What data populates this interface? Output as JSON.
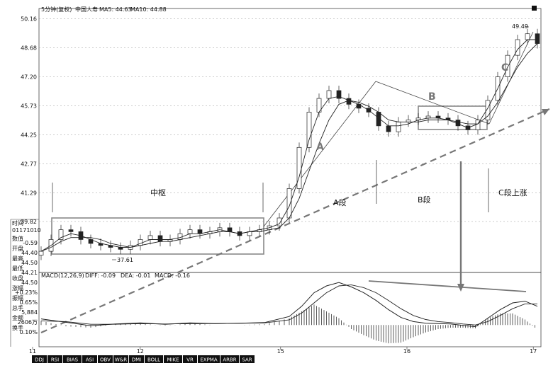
{
  "header": {
    "period": "5分钟(复权)",
    "name": "中国人寿",
    "ma5": "MA5: 44.63",
    "ma10": "MA10: 44.88"
  },
  "side_info": {
    "title": "时间",
    "id": "01171010",
    "rows": [
      {
        "label": "数值",
        "value": "-0.59"
      },
      {
        "label": "开盘",
        "value": "44.40"
      },
      {
        "label": "最高",
        "value": "44.50"
      },
      {
        "label": "最低",
        "value": "44.21"
      },
      {
        "label": "收盘",
        "value": "44.50"
      },
      {
        "label": "涨幅",
        "value": "+0.23%"
      },
      {
        "label": "振幅",
        "value": "0.65%"
      },
      {
        "label": "总手",
        "value": "5,884"
      },
      {
        "label": "金额",
        "value": "2606万"
      },
      {
        "label": "换手",
        "value": "0.10%"
      }
    ]
  },
  "macd": {
    "label": "MACD(12,26,9)",
    "diff": "DIFF: -0.09",
    "dea": "DEA: -0.01",
    "macd": "MACD: -0.16"
  },
  "annotations": {
    "zhongshu": "中枢",
    "a": "A",
    "a_seg": "A段",
    "b": "B",
    "b_seg": "B段",
    "c": "C",
    "c_seg": "C段上涨",
    "low_mark": "37.61",
    "high_mark": "49.49"
  },
  "tabs": [
    "DDJ",
    "RSI",
    "BIAS",
    "ASI",
    "OBV",
    "W&R",
    "DMI",
    "BOLL",
    "MIKE",
    "VR",
    "EXPMA",
    "ARBR",
    "SAR"
  ],
  "chart_data": {
    "type": "line",
    "title": "",
    "xlabel": "",
    "ylabel": "",
    "x_ticks": [
      "11",
      "12",
      "15",
      "16",
      "17"
    ],
    "y_ticks": [
      50.16,
      48.68,
      47.2,
      45.73,
      44.25,
      42.77,
      41.29,
      39.82
    ],
    "ylim": [
      37.4,
      50.4
    ],
    "grid": true,
    "x": [
      0,
      4,
      8,
      12,
      16,
      20,
      24,
      28,
      32,
      36,
      40,
      44,
      48,
      52,
      56,
      60,
      64,
      68,
      72,
      76,
      80,
      84,
      88,
      92,
      96,
      100,
      104,
      108,
      112,
      116,
      120,
      124,
      128,
      132,
      136,
      140,
      144,
      148,
      152,
      156,
      160,
      164,
      168,
      172,
      176,
      180,
      184,
      188,
      192,
      196,
      200
    ],
    "series": [
      {
        "name": "close",
        "values": [
          38.3,
          38.9,
          39.4,
          39.3,
          38.9,
          38.7,
          38.6,
          38.5,
          38.4,
          38.6,
          38.9,
          39.1,
          38.8,
          38.9,
          39.2,
          39.4,
          39.2,
          39.3,
          39.5,
          39.3,
          39.1,
          39.3,
          39.4,
          39.6,
          40.0,
          41.5,
          43.6,
          45.4,
          46.1,
          46.5,
          46.1,
          45.8,
          45.6,
          45.4,
          44.7,
          44.4,
          44.9,
          45.0,
          45.1,
          45.2,
          45.1,
          45.0,
          44.7,
          44.5,
          45.0,
          46.0,
          47.2,
          48.3,
          49.1,
          49.4,
          48.9
        ]
      },
      {
        "name": "MA5",
        "values": [
          38.3,
          38.6,
          39.0,
          39.2,
          39.1,
          38.9,
          38.7,
          38.6,
          38.5,
          38.5,
          38.7,
          38.9,
          38.9,
          38.9,
          39.0,
          39.2,
          39.2,
          39.3,
          39.4,
          39.3,
          39.2,
          39.3,
          39.4,
          39.5,
          39.7,
          40.6,
          42.1,
          44.0,
          45.4,
          46.1,
          46.2,
          46.0,
          45.8,
          45.5,
          45.1,
          44.7,
          44.7,
          44.8,
          45.0,
          45.1,
          45.1,
          45.0,
          44.8,
          44.6,
          44.8,
          45.6,
          46.6,
          47.7,
          48.6,
          49.1,
          49.1
        ]
      },
      {
        "name": "MA10",
        "values": [
          38.3,
          38.5,
          38.8,
          39.0,
          39.0,
          39.0,
          38.9,
          38.7,
          38.6,
          38.5,
          38.6,
          38.7,
          38.8,
          38.8,
          38.9,
          39.0,
          39.1,
          39.2,
          39.3,
          39.3,
          39.2,
          39.3,
          39.3,
          39.4,
          39.5,
          40.0,
          41.0,
          42.4,
          43.8,
          45.0,
          45.8,
          46.0,
          45.9,
          45.7,
          45.4,
          45.0,
          44.9,
          44.9,
          44.9,
          45.0,
          45.0,
          45.0,
          44.9,
          44.8,
          44.8,
          45.2,
          45.9,
          46.8,
          47.7,
          48.4,
          48.9
        ]
      }
    ],
    "macd_x": [
      0,
      10,
      20,
      30,
      40,
      50,
      60,
      70,
      80,
      90,
      100,
      105,
      110,
      115,
      120,
      125,
      130,
      135,
      140,
      145,
      150,
      155,
      160,
      165,
      170,
      175,
      180,
      185,
      190,
      195,
      200
    ],
    "macd_diff": [
      0.18,
      0.08,
      -0.02,
      0.03,
      0.06,
      0.02,
      0.06,
      0.04,
      0.05,
      0.07,
      0.25,
      0.55,
      0.95,
      1.15,
      1.25,
      1.12,
      0.95,
      0.72,
      0.45,
      0.22,
      0.1,
      0.05,
      0.04,
      0.03,
      -0.01,
      -0.05,
      0.2,
      0.45,
      0.65,
      0.7,
      0.55
    ],
    "macd_dea": [
      0.12,
      0.1,
      0.02,
      0.02,
      0.04,
      0.03,
      0.04,
      0.04,
      0.05,
      0.06,
      0.15,
      0.35,
      0.65,
      0.95,
      1.15,
      1.18,
      1.1,
      0.95,
      0.72,
      0.48,
      0.28,
      0.16,
      0.1,
      0.07,
      0.03,
      0.0,
      0.1,
      0.28,
      0.48,
      0.62,
      0.62
    ]
  }
}
